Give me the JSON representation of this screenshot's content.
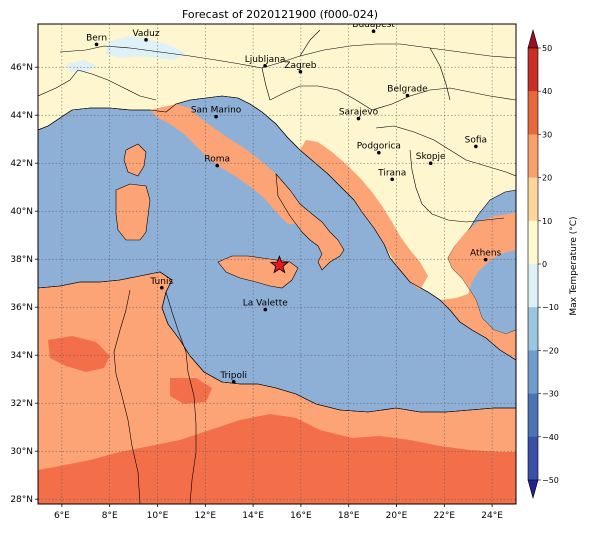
{
  "title": "Forecast of 2020121900 (f000-024)",
  "lon_ticks": [
    "6°E",
    "8°E",
    "10°E",
    "12°E",
    "14°E",
    "16°E",
    "18°E",
    "20°E",
    "22°E",
    "24°E"
  ],
  "lat_ticks": [
    "28°N",
    "30°N",
    "32°N",
    "34°N",
    "36°N",
    "38°N",
    "40°N",
    "42°N",
    "44°N",
    "46°N"
  ],
  "cities": [
    {
      "name": "Bern",
      "lon": 7.45,
      "lat": 46.95
    },
    {
      "name": "Vaduz",
      "lon": 9.52,
      "lat": 47.14
    },
    {
      "name": "Budapest",
      "lon": 19.04,
      "lat": 47.5
    },
    {
      "name": "Ljubljana",
      "lon": 14.5,
      "lat": 46.06
    },
    {
      "name": "Zagreb",
      "lon": 15.98,
      "lat": 45.81
    },
    {
      "name": "Belgrade",
      "lon": 20.46,
      "lat": 44.82
    },
    {
      "name": "San Marino",
      "lon": 12.45,
      "lat": 43.94
    },
    {
      "name": "Sarajevo",
      "lon": 18.41,
      "lat": 43.86
    },
    {
      "name": "Sofia",
      "lon": 23.32,
      "lat": 42.7
    },
    {
      "name": "Podgorica",
      "lon": 19.26,
      "lat": 42.44
    },
    {
      "name": "Skopje",
      "lon": 21.43,
      "lat": 42.0
    },
    {
      "name": "Roma",
      "lon": 12.5,
      "lat": 41.9
    },
    {
      "name": "Tirana",
      "lon": 19.82,
      "lat": 41.33
    },
    {
      "name": "Athens",
      "lon": 23.73,
      "lat": 37.98
    },
    {
      "name": "Tunis",
      "lon": 10.18,
      "lat": 36.81
    },
    {
      "name": "La Valette",
      "lon": 14.51,
      "lat": 35.9
    },
    {
      "name": "Tripoli",
      "lon": 13.19,
      "lat": 32.89
    }
  ],
  "marker": {
    "name": "star-marker",
    "lon": 15.1,
    "lat": 37.75
  },
  "colorbar": {
    "label": "Max Temperature (°C)",
    "ticks": [
      "−50",
      "−40",
      "−30",
      "−20",
      "−10",
      "0",
      "10",
      "20",
      "30",
      "40",
      "50"
    ],
    "colors": [
      "#23238e",
      "#3a4fa8",
      "#4a74b4",
      "#6f9ccc",
      "#9cc5e0",
      "#dff0f6",
      "#fff9cf",
      "#fdd79a",
      "#f7a06c",
      "#e8673c",
      "#c72f27",
      "#9a1020"
    ]
  },
  "map_colors": {
    "sea": "#8fb0d6",
    "cold": "#fdf6cf",
    "mild": "#fca476",
    "warm": "#f26f4a",
    "snow": "#dff0f6"
  }
}
